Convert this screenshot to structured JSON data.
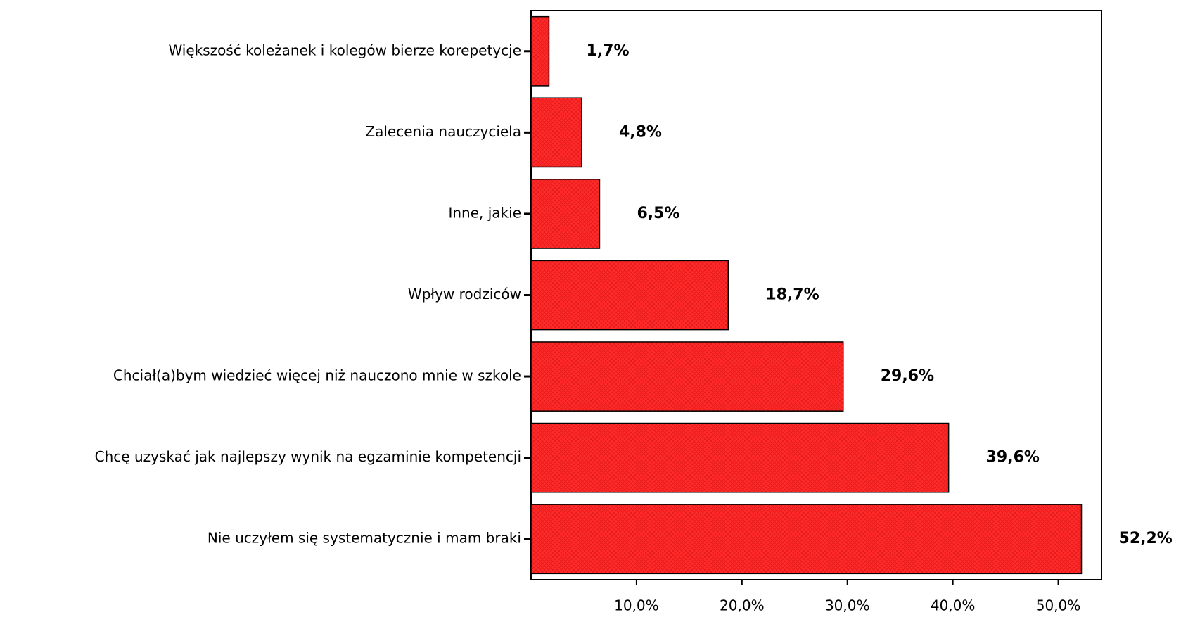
{
  "chart_data": {
    "type": "bar",
    "orientation": "horizontal",
    "categories": [
      "Większość koleżanek i kolegów bierze korepetycje",
      "Zalecenia nauczyciela",
      "Inne, jakie",
      "Wpływ rodziców",
      "Chciał(a)bym wiedzieć więcej niż nauczono mnie w szkole",
      "Chcę uzyskać jak najlepszy wynik na egzaminie kompetencji",
      "Nie uczyłem się systematycznie i mam braki"
    ],
    "values": [
      1.7,
      4.8,
      6.5,
      18.7,
      29.6,
      39.6,
      52.2
    ],
    "value_labels": [
      "1,7%",
      "4,8%",
      "6,5%",
      "18,7%",
      "29,6%",
      "39,6%",
      "52,2%"
    ],
    "color": "#ff2a2a",
    "xlim": [
      0,
      54.1
    ],
    "xticks": [
      {
        "value": 10,
        "label": "10,0%"
      },
      {
        "value": 20,
        "label": "20,0%"
      },
      {
        "value": 30,
        "label": "30,0%"
      },
      {
        "value": 40,
        "label": "40,0%"
      },
      {
        "value": 50,
        "label": "50,0%"
      }
    ]
  }
}
